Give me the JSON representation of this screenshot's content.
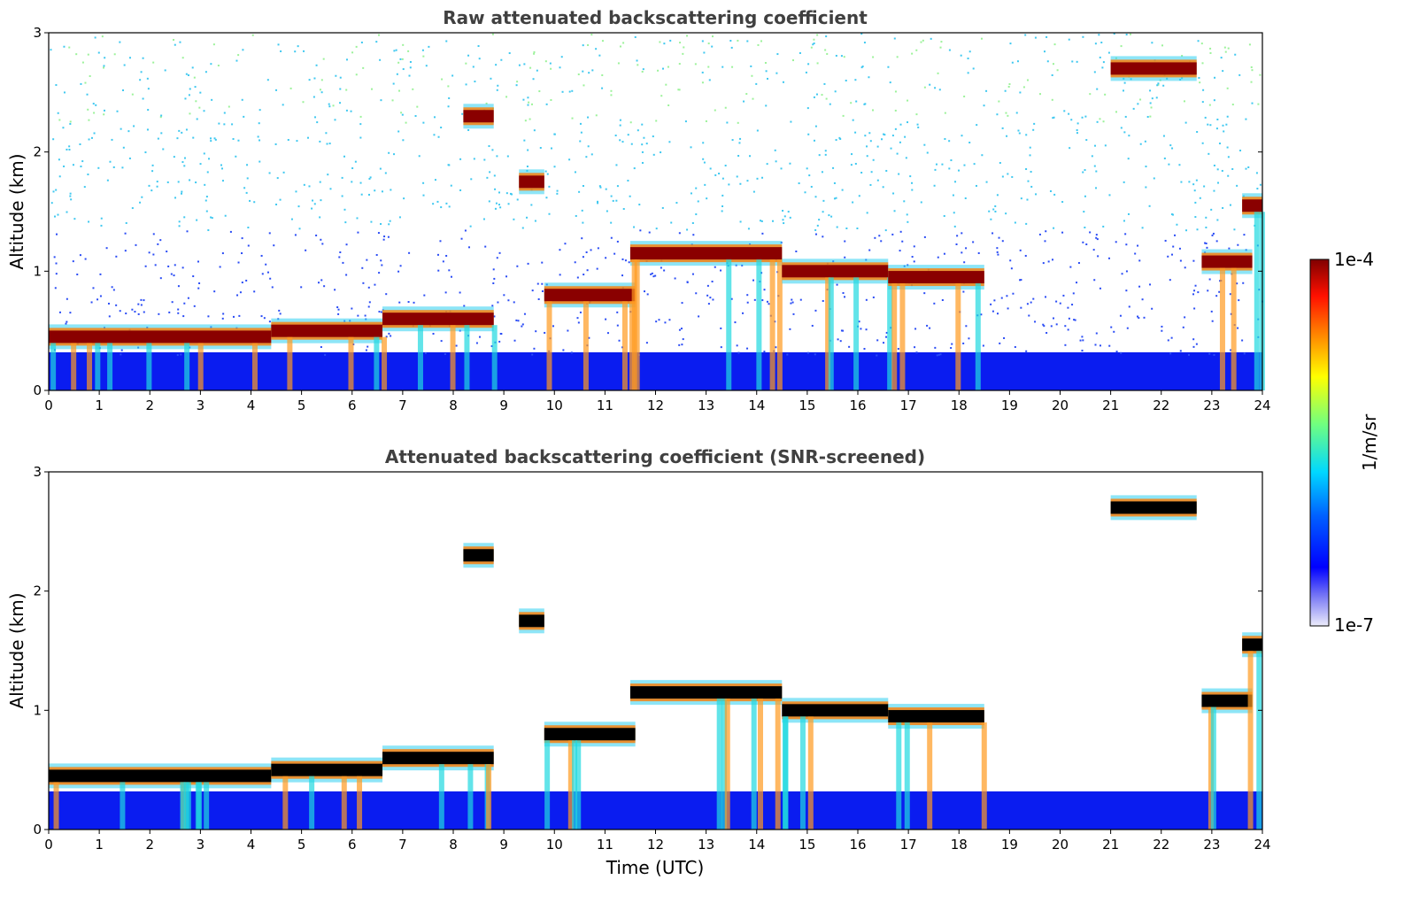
{
  "chart_data": [
    {
      "type": "heatmap",
      "title": "Raw attenuated backscattering coefficient",
      "xlabel": "",
      "ylabel": "Altitude (km)",
      "xlim": [
        0,
        24
      ],
      "ylim": [
        0,
        3
      ],
      "xticks": [
        "0",
        "1",
        "2",
        "3",
        "4",
        "5",
        "6",
        "7",
        "8",
        "9",
        "10",
        "11",
        "12",
        "13",
        "14",
        "15",
        "16",
        "17",
        "18",
        "19",
        "20",
        "21",
        "22",
        "23",
        "24"
      ],
      "yticks": [
        "0",
        "1",
        "2",
        "3"
      ],
      "background_noise": true,
      "boundary_layer_top": [
        {
          "t": 0,
          "z": 0.45
        },
        {
          "t": 4.4,
          "z": 0.42
        },
        {
          "t": 4.5,
          "z": 0.5
        },
        {
          "t": 6.5,
          "z": 0.5
        },
        {
          "t": 8.5,
          "z": 0.6
        },
        {
          "t": 9,
          "z": 0.65
        }
      ],
      "cloud_layers": [
        {
          "t0": 0,
          "t1": 4.4,
          "z": 0.45
        },
        {
          "t0": 4.4,
          "t1": 6.6,
          "z": 0.5
        },
        {
          "t0": 6.6,
          "t1": 8.8,
          "z": 0.6
        },
        {
          "t0": 8.2,
          "t1": 8.8,
          "z": 2.3
        },
        {
          "t0": 9.3,
          "t1": 9.8,
          "z": 1.75
        },
        {
          "t0": 9.8,
          "t1": 11.6,
          "z": 0.8
        },
        {
          "t0": 11.5,
          "t1": 14.5,
          "z": 1.15
        },
        {
          "t0": 14.5,
          "t1": 16.6,
          "z": 1.0
        },
        {
          "t0": 16.6,
          "t1": 18.5,
          "z": 0.95
        },
        {
          "t0": 21.0,
          "t1": 22.7,
          "z": 2.7
        },
        {
          "t0": 22.8,
          "t1": 23.8,
          "z": 1.08
        },
        {
          "t0": 23.6,
          "t1": 24,
          "z": 1.55
        }
      ]
    },
    {
      "type": "heatmap",
      "title": "Attenuated backscattering coefficient (SNR-screened)",
      "xlabel": "Time (UTC)",
      "ylabel": "Altitude (km)",
      "xlim": [
        0,
        24
      ],
      "ylim": [
        0,
        3
      ],
      "xticks": [
        "0",
        "1",
        "2",
        "3",
        "4",
        "5",
        "6",
        "7",
        "8",
        "9",
        "10",
        "11",
        "12",
        "13",
        "14",
        "15",
        "16",
        "17",
        "18",
        "19",
        "20",
        "21",
        "22",
        "23",
        "24"
      ],
      "yticks": [
        "0",
        "1",
        "2",
        "3"
      ],
      "background_noise": false,
      "cloud_layers": [
        {
          "t0": 0,
          "t1": 4.4,
          "z": 0.45
        },
        {
          "t0": 4.4,
          "t1": 6.6,
          "z": 0.5
        },
        {
          "t0": 6.6,
          "t1": 8.8,
          "z": 0.6
        },
        {
          "t0": 8.2,
          "t1": 8.8,
          "z": 2.3
        },
        {
          "t0": 9.3,
          "t1": 9.8,
          "z": 1.75
        },
        {
          "t0": 9.8,
          "t1": 11.6,
          "z": 0.8
        },
        {
          "t0": 11.5,
          "t1": 14.5,
          "z": 1.15
        },
        {
          "t0": 14.5,
          "t1": 16.6,
          "z": 1.0
        },
        {
          "t0": 16.6,
          "t1": 18.5,
          "z": 0.95
        },
        {
          "t0": 21.0,
          "t1": 22.7,
          "z": 2.7
        },
        {
          "t0": 22.8,
          "t1": 23.8,
          "z": 1.08
        },
        {
          "t0": 23.6,
          "t1": 24,
          "z": 1.55
        }
      ]
    }
  ],
  "colorbar": {
    "label": "1/m/sr",
    "max_label": "1e-4",
    "min_label": "1e-7",
    "range": [
      1e-07,
      0.0001
    ],
    "scale": "log",
    "colormap": "jet",
    "peak_color": "#000000"
  }
}
